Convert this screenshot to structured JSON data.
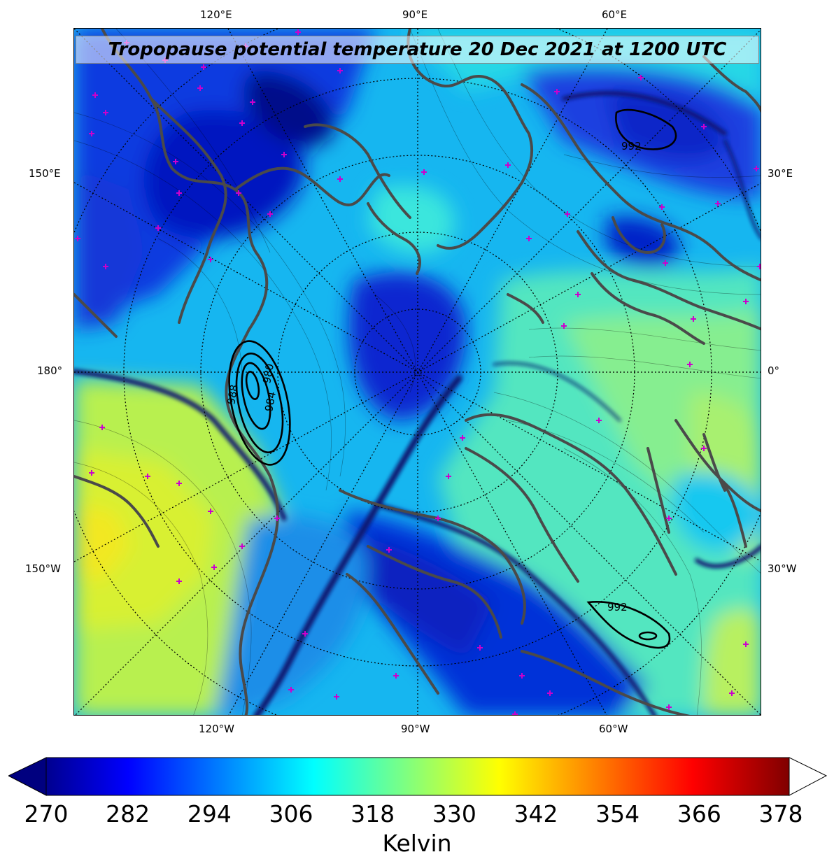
{
  "title": "Tropopause potential temperature 20 Dec 2021 at 1200 UTC",
  "longitude_labels": {
    "top": [
      "120°E",
      "90°E",
      "60°E"
    ],
    "bottom": [
      "120°W",
      "90°W",
      "60°W"
    ],
    "left": [
      "150°E",
      "180°",
      "150°W"
    ],
    "right": [
      "30°E",
      "0°",
      "30°W"
    ]
  },
  "pressure_contours": [
    {
      "label": "992",
      "region": "upper-right"
    },
    {
      "label": "980",
      "region": "left-center"
    },
    {
      "label": "984",
      "region": "left-center"
    },
    {
      "label": "988",
      "region": "left-center"
    },
    {
      "label": "992",
      "region": "lower-right"
    }
  ],
  "colorbar": {
    "ticks": [
      "270",
      "282",
      "294",
      "306",
      "318",
      "330",
      "342",
      "354",
      "366",
      "378"
    ],
    "unit": "Kelvin",
    "colormap": "jet",
    "range": [
      270,
      380
    ]
  },
  "colors": {
    "coastline": "#4a4a4a",
    "station_marker": "#cc00cc",
    "contour": "#000000"
  }
}
